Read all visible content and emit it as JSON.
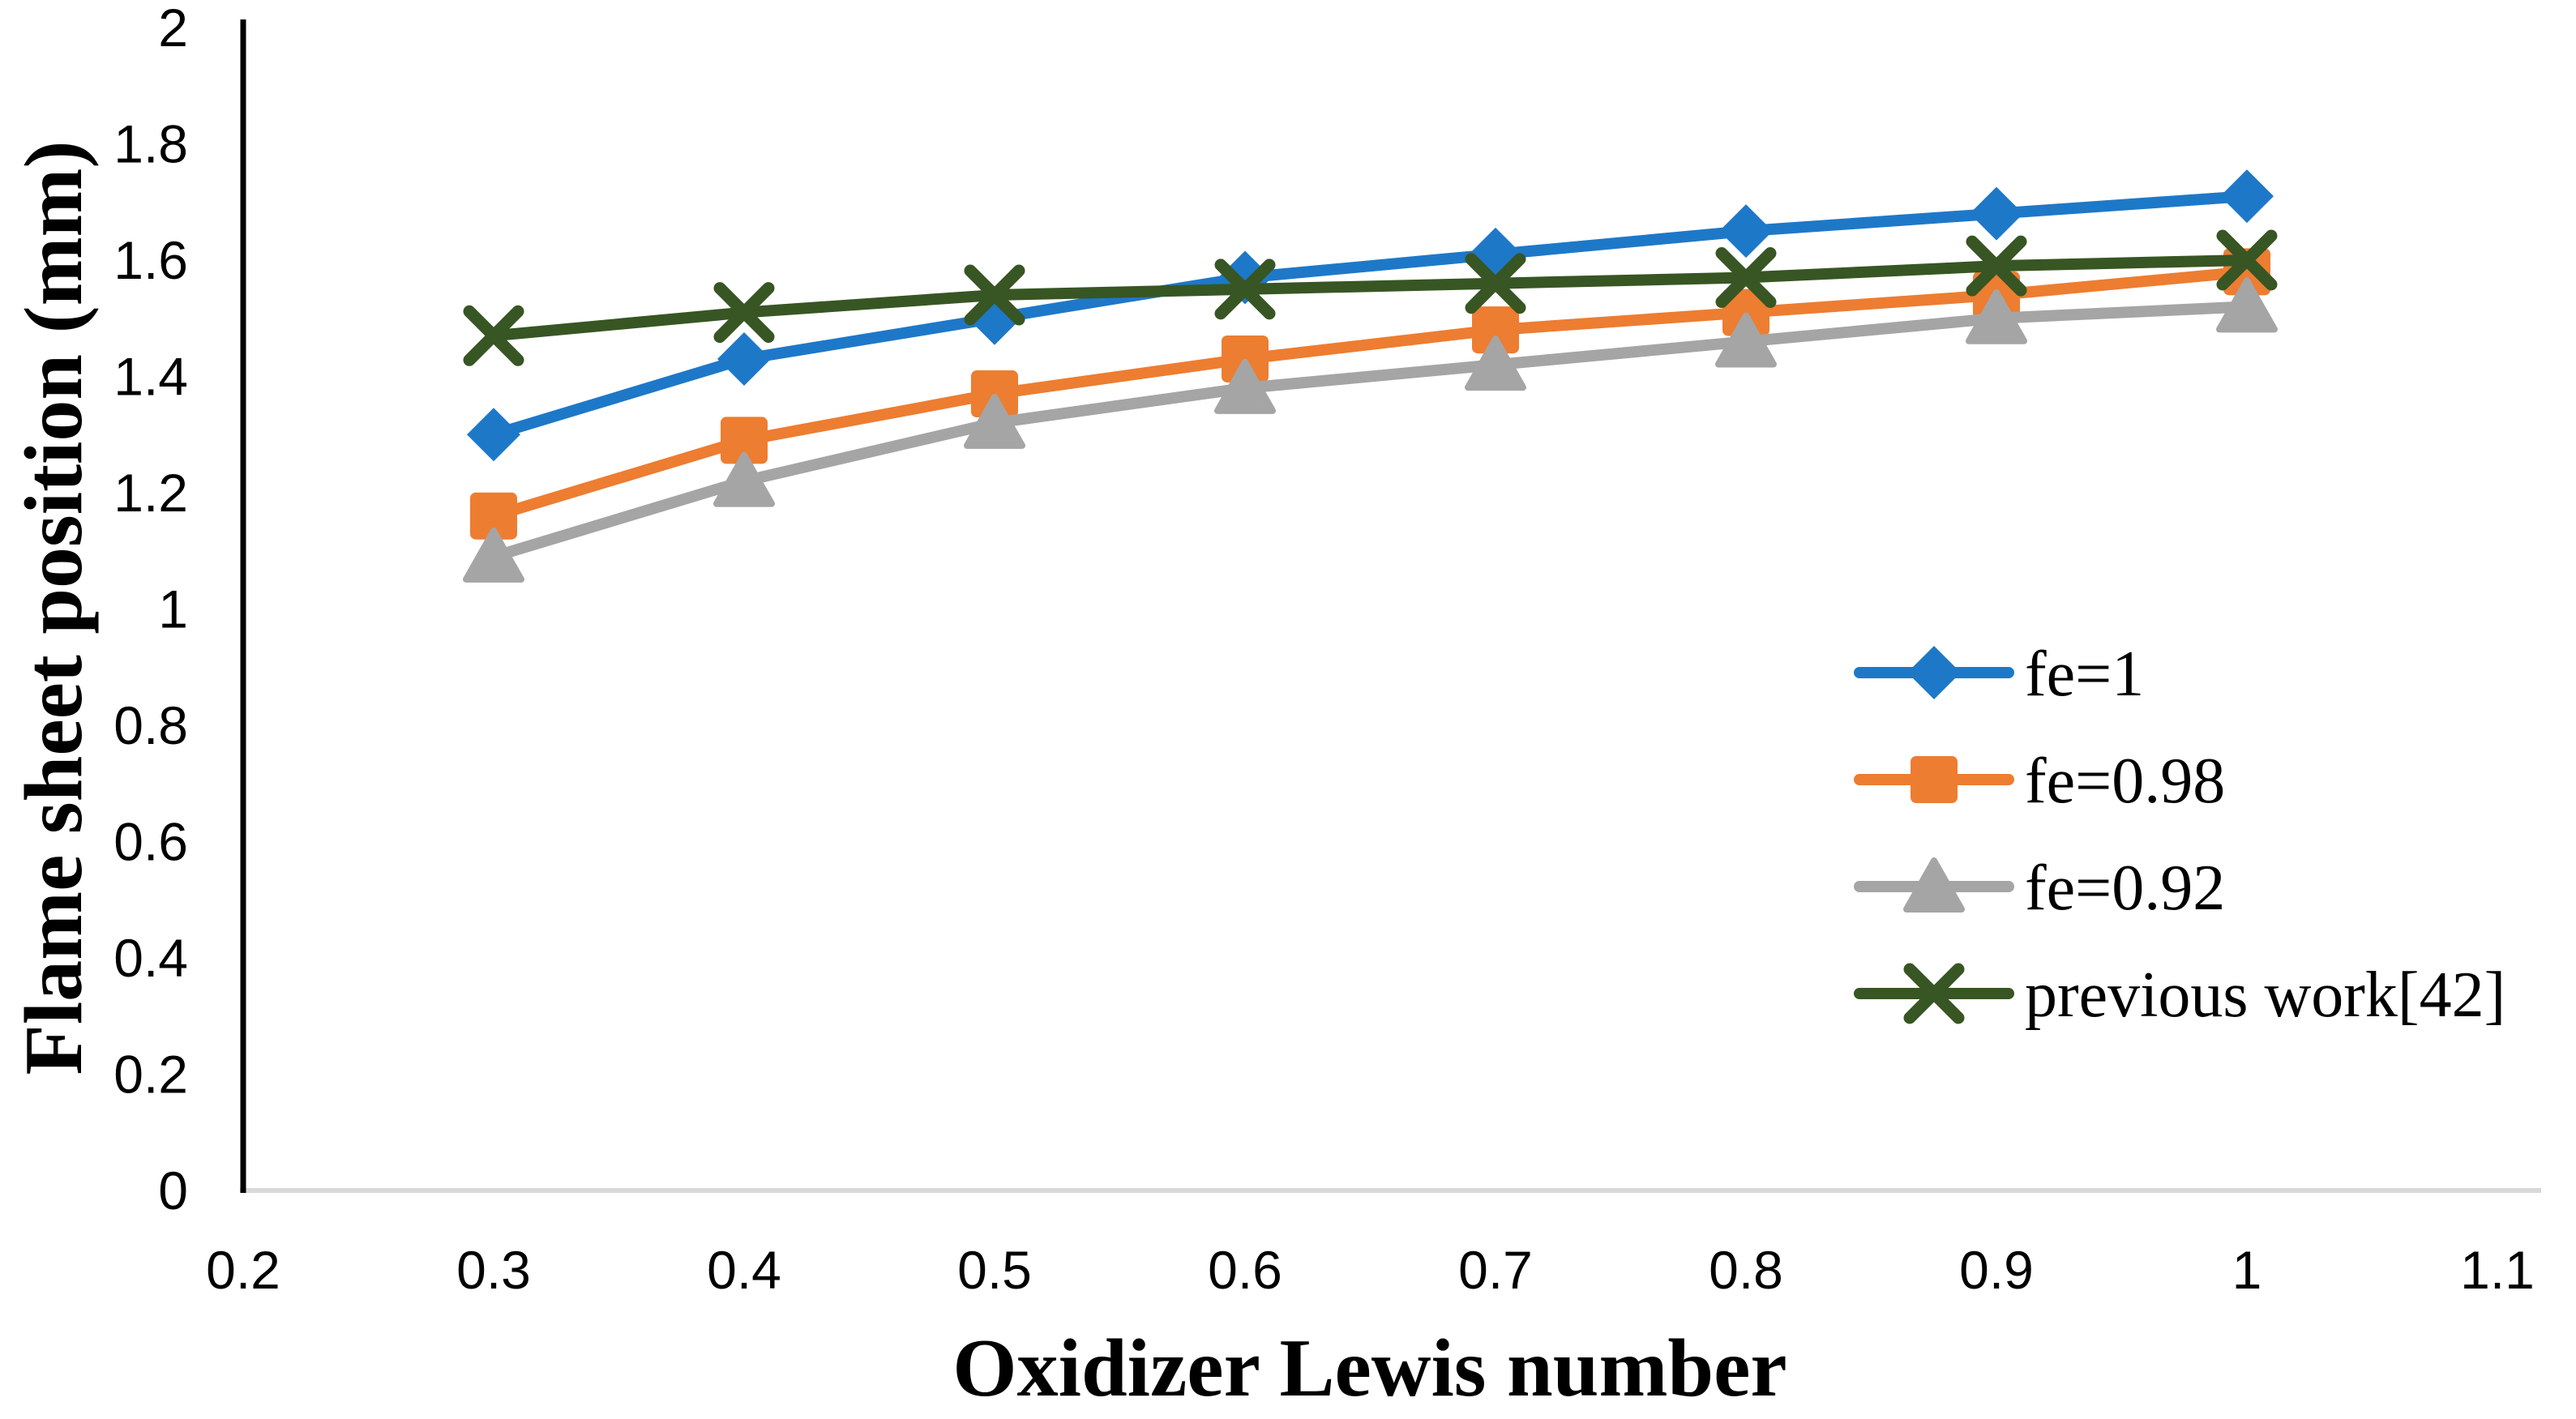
{
  "chart_data": {
    "type": "line",
    "title": "",
    "xlabel": "Oxidizer Lewis number",
    "ylabel": "Flame sheet position (mm)",
    "x": [
      0.3,
      0.4,
      0.5,
      0.6,
      0.7,
      0.8,
      0.9,
      1.0
    ],
    "series": [
      {
        "name": "fe=1",
        "marker": "diamond",
        "color": "#1E78C8",
        "values": [
          1.3,
          1.43,
          1.5,
          1.57,
          1.61,
          1.65,
          1.68,
          1.71
        ]
      },
      {
        "name": "fe=0.98",
        "marker": "square",
        "color": "#ED7D31",
        "values": [
          1.16,
          1.29,
          1.37,
          1.43,
          1.48,
          1.51,
          1.54,
          1.58
        ]
      },
      {
        "name": "fe=0.92",
        "marker": "triangle",
        "color": "#A5A5A5",
        "values": [
          1.09,
          1.22,
          1.32,
          1.38,
          1.42,
          1.46,
          1.5,
          1.52
        ]
      },
      {
        "name": "previous work[42]",
        "marker": "x",
        "color": "#375623",
        "values": [
          1.47,
          1.51,
          1.54,
          1.55,
          1.56,
          1.57,
          1.59,
          1.6
        ]
      }
    ],
    "xlim": [
      0.2,
      1.1
    ],
    "ylim": [
      0,
      2
    ],
    "x_ticks": [
      "0.2",
      "0.3",
      "0.4",
      "0.5",
      "0.6",
      "0.7",
      "0.8",
      "0.9",
      "1",
      "1.1"
    ],
    "x_tick_values": [
      0.2,
      0.3,
      0.4,
      0.5,
      0.6,
      0.7,
      0.8,
      0.9,
      1.0,
      1.1
    ],
    "y_ticks": [
      "0",
      "0.2",
      "0.4",
      "0.6",
      "0.8",
      "1",
      "1.2",
      "1.4",
      "1.6",
      "1.8",
      "2"
    ],
    "y_tick_values": [
      0,
      0.2,
      0.4,
      0.6,
      0.8,
      1.0,
      1.2,
      1.4,
      1.6,
      1.8,
      2.0
    ],
    "grid": false,
    "legend_position": "right-middle",
    "legend_labels": [
      "fe=1",
      "fe=0.98",
      "fe=0.92",
      "previous work[42]"
    ],
    "axis_line_color": "#000000",
    "baseline_color": "#D9D9D9",
    "background_color": "#FFFFFF"
  }
}
